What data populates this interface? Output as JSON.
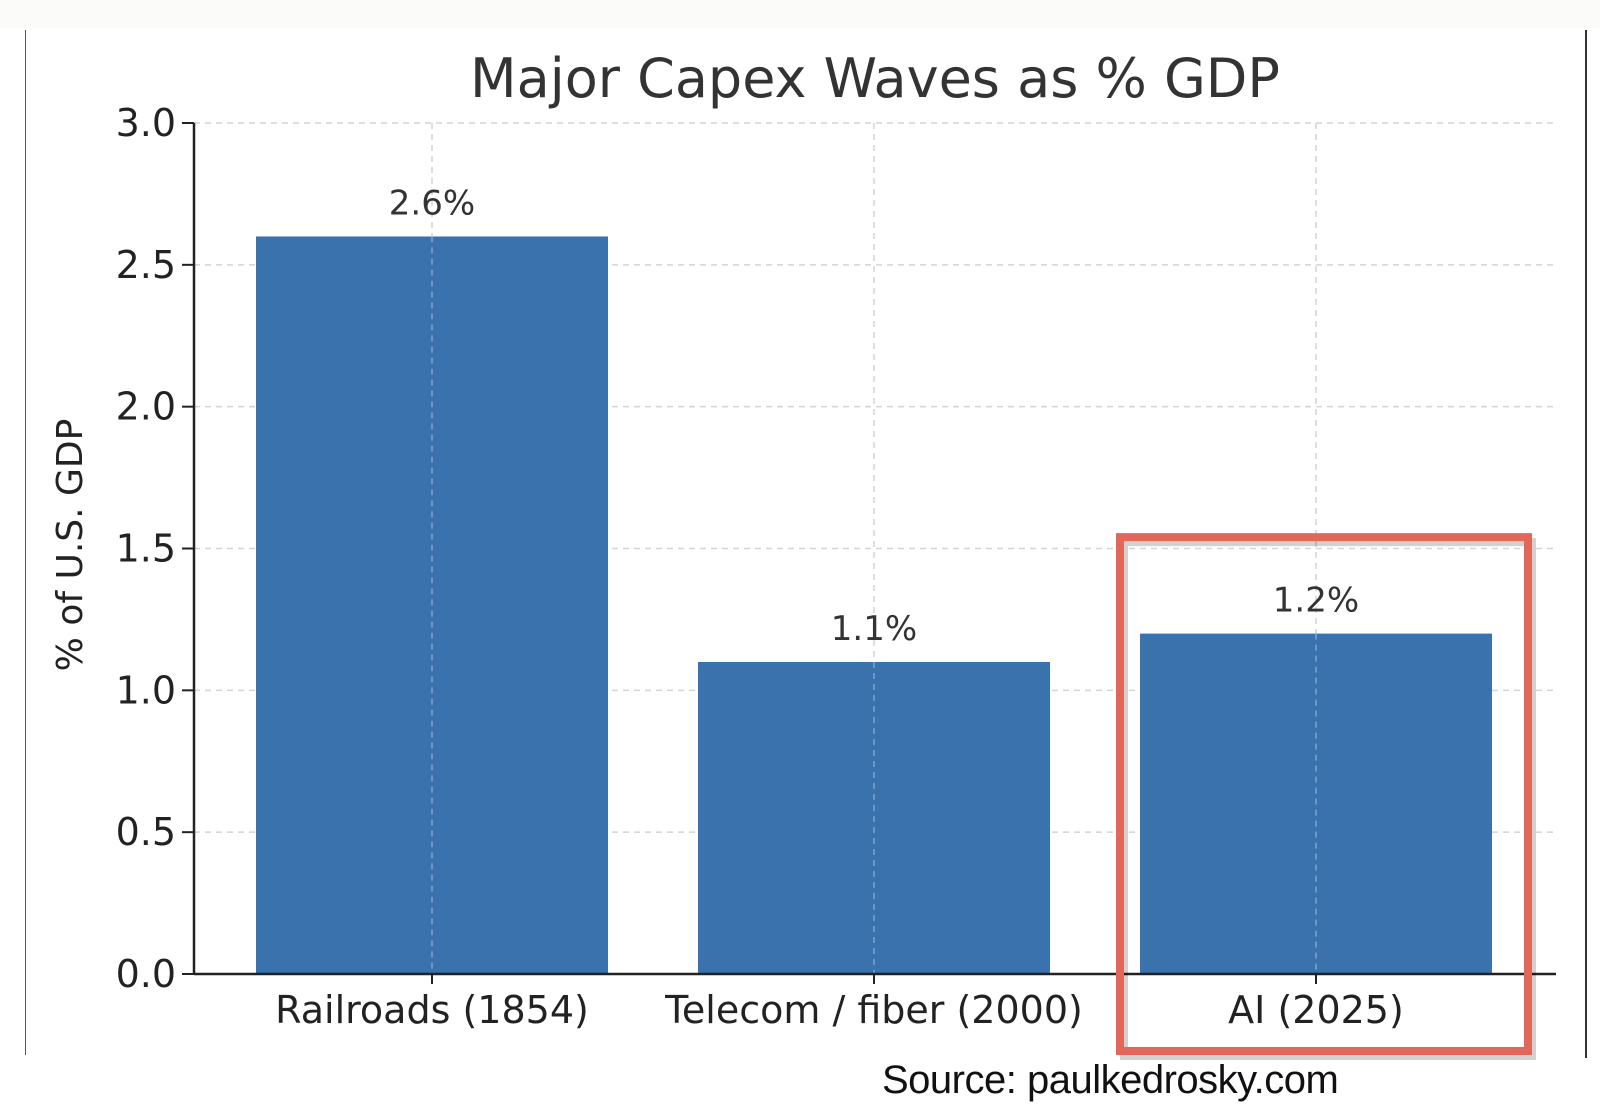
{
  "chart_data": {
    "type": "bar",
    "title": "Major Capex Waves as % GDP",
    "xlabel": "",
    "ylabel": "% of U.S. GDP",
    "categories": [
      "Railroads (1854)",
      "Telecom / fiber (2000)",
      "AI (2025)"
    ],
    "values": [
      2.6,
      1.1,
      1.2
    ],
    "data_labels": [
      "2.6%",
      "1.1%",
      "1.2%"
    ],
    "ylim": [
      0,
      3.0
    ],
    "yticks": [
      "0.0",
      "0.5",
      "1.0",
      "1.5",
      "2.0",
      "2.5",
      "3.0"
    ],
    "grid": true,
    "highlighted_category": "AI (2025)",
    "bar_color": "#3a72ad",
    "highlight_color": "#e0675a"
  },
  "source_note": "Source: paulkedrosky.com"
}
